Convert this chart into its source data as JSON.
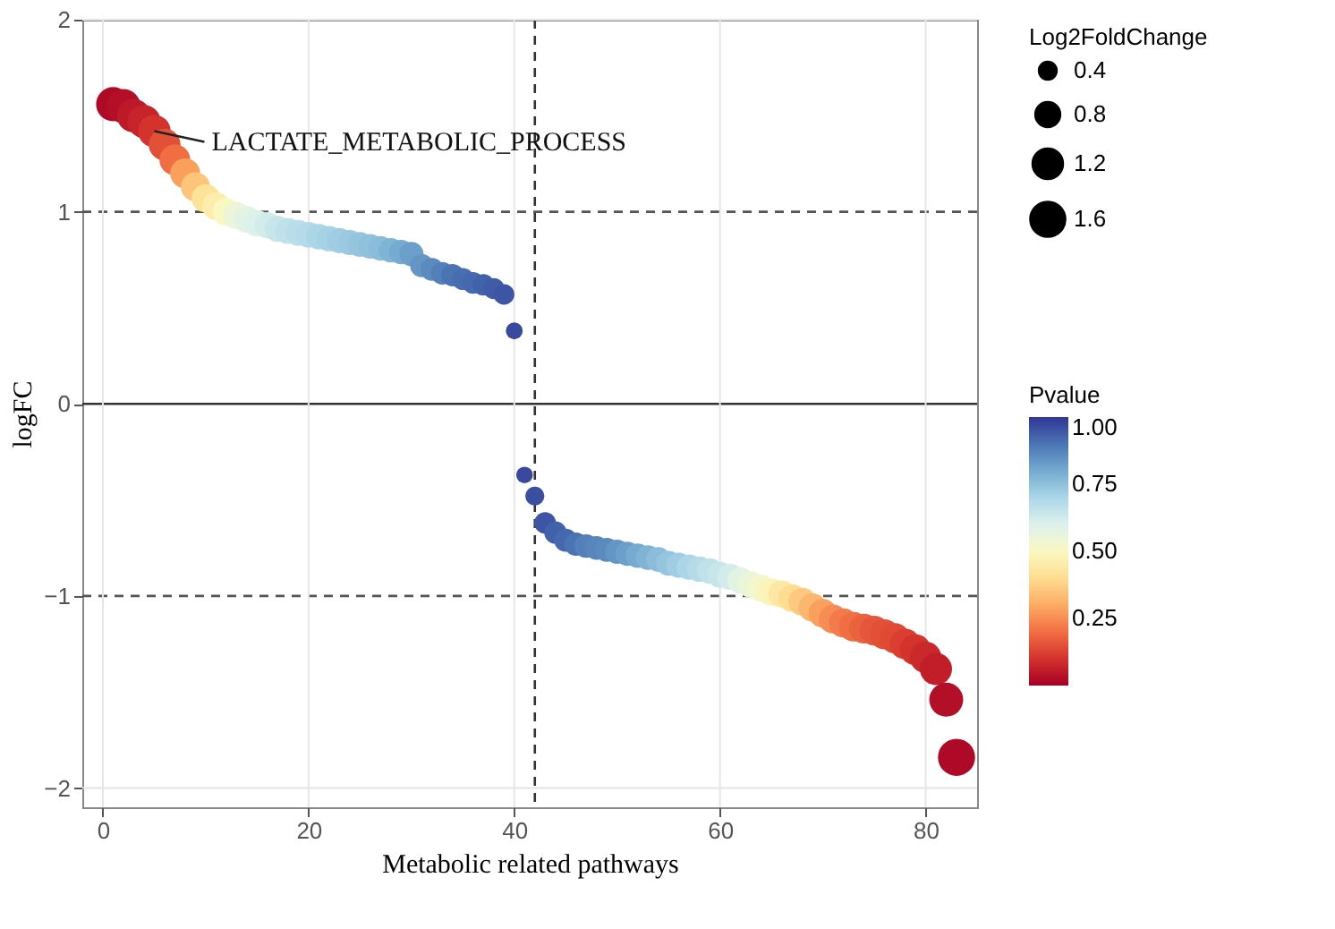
{
  "chart_data": {
    "type": "bubble",
    "xlabel": "Metabolic related pathways",
    "ylabel": "logFC",
    "legend_title": "Log2FoldChange",
    "clabel": "Pvalue",
    "x": [
      1,
      2,
      3,
      4,
      5,
      6,
      7,
      8,
      9,
      10,
      11,
      12,
      13,
      14,
      15,
      16,
      17,
      18,
      19,
      20,
      21,
      22,
      23,
      24,
      25,
      26,
      27,
      28,
      29,
      30,
      31,
      32,
      33,
      34,
      35,
      36,
      37,
      38,
      39,
      40,
      41,
      42,
      43,
      44,
      45,
      46,
      47,
      48,
      49,
      50,
      51,
      52,
      53,
      54,
      55,
      56,
      57,
      58,
      59,
      60,
      61,
      62,
      63,
      64,
      65,
      66,
      67,
      68,
      69,
      70,
      71,
      72,
      73,
      74,
      75,
      76,
      77,
      78,
      79,
      80,
      81,
      82,
      83
    ],
    "values": [
      1.56,
      1.55,
      1.5,
      1.47,
      1.42,
      1.35,
      1.27,
      1.2,
      1.13,
      1.07,
      1.03,
      1.0,
      0.98,
      0.96,
      0.94,
      0.93,
      0.91,
      0.9,
      0.89,
      0.88,
      0.87,
      0.86,
      0.85,
      0.84,
      0.83,
      0.82,
      0.81,
      0.8,
      0.79,
      0.78,
      0.72,
      0.7,
      0.68,
      0.67,
      0.65,
      0.63,
      0.62,
      0.6,
      0.57,
      0.38,
      -0.37,
      -0.48,
      -0.62,
      -0.67,
      -0.71,
      -0.73,
      -0.74,
      -0.75,
      -0.76,
      -0.77,
      -0.78,
      -0.79,
      -0.8,
      -0.81,
      -0.83,
      -0.84,
      -0.85,
      -0.86,
      -0.87,
      -0.89,
      -0.9,
      -0.92,
      -0.94,
      -0.96,
      -0.98,
      -0.99,
      -1.01,
      -1.03,
      -1.06,
      -1.09,
      -1.12,
      -1.14,
      -1.16,
      -1.17,
      -1.18,
      -1.2,
      -1.22,
      -1.25,
      -1.28,
      -1.32,
      -1.38,
      -1.54,
      -1.84
    ],
    "sizes": [
      1.56,
      1.55,
      1.5,
      1.47,
      1.42,
      1.35,
      1.27,
      1.2,
      1.13,
      1.07,
      1.03,
      1.0,
      0.98,
      0.96,
      0.94,
      0.93,
      0.91,
      0.9,
      0.89,
      0.88,
      0.87,
      0.86,
      0.85,
      0.84,
      0.83,
      0.82,
      0.81,
      0.8,
      0.79,
      0.78,
      0.72,
      0.7,
      0.68,
      0.67,
      0.65,
      0.63,
      0.62,
      0.6,
      0.57,
      0.38,
      0.37,
      0.48,
      0.62,
      0.67,
      0.71,
      0.73,
      0.74,
      0.75,
      0.76,
      0.77,
      0.78,
      0.79,
      0.8,
      0.81,
      0.83,
      0.84,
      0.85,
      0.86,
      0.87,
      0.89,
      0.9,
      0.92,
      0.94,
      0.96,
      0.98,
      0.99,
      1.01,
      1.03,
      1.06,
      1.09,
      1.12,
      1.14,
      1.16,
      1.17,
      1.18,
      1.2,
      1.22,
      1.25,
      1.28,
      1.32,
      1.38,
      1.54,
      1.84
    ],
    "size_legend": [
      0.4,
      0.8,
      1.2,
      1.6
    ],
    "cvalues": [
      0.02,
      0.03,
      0.05,
      0.07,
      0.1,
      0.15,
      0.2,
      0.28,
      0.35,
      0.42,
      0.46,
      0.5,
      0.55,
      0.58,
      0.6,
      0.62,
      0.64,
      0.66,
      0.67,
      0.68,
      0.7,
      0.71,
      0.72,
      0.73,
      0.74,
      0.75,
      0.76,
      0.78,
      0.8,
      0.82,
      0.84,
      0.86,
      0.88,
      0.9,
      0.91,
      0.92,
      0.93,
      0.94,
      0.95,
      0.97,
      0.97,
      0.96,
      0.95,
      0.93,
      0.92,
      0.9,
      0.88,
      0.87,
      0.86,
      0.84,
      0.82,
      0.8,
      0.78,
      0.76,
      0.74,
      0.72,
      0.7,
      0.68,
      0.66,
      0.64,
      0.62,
      0.58,
      0.55,
      0.52,
      0.48,
      0.44,
      0.4,
      0.36,
      0.32,
      0.28,
      0.25,
      0.22,
      0.2,
      0.18,
      0.16,
      0.15,
      0.14,
      0.12,
      0.1,
      0.08,
      0.06,
      0.03,
      0.02
    ],
    "clim": [
      0,
      1
    ],
    "cticks": [
      {
        "value": 0.25,
        "label": "0.25"
      },
      {
        "value": 0.5,
        "label": "0.50"
      },
      {
        "value": 0.75,
        "label": "0.75"
      },
      {
        "value": 1,
        "label": "1.00"
      }
    ],
    "xlim": [
      -2,
      85
    ],
    "xticks": [
      0,
      20,
      40,
      60,
      80
    ],
    "ylim": [
      -2.1,
      2
    ],
    "yticks": [
      -2,
      -1,
      0,
      1,
      2
    ],
    "ref_lines": [
      {
        "axis": "y",
        "value": 0,
        "color": "#333333",
        "line_style": "solid"
      },
      {
        "axis": "y",
        "value": 1,
        "color": "#555555",
        "line_style": "dashed"
      },
      {
        "axis": "y",
        "value": -1,
        "color": "#555555",
        "line_style": "dashed"
      },
      {
        "axis": "x",
        "value": 42,
        "color": "#333333",
        "line_style": "dashed"
      }
    ],
    "annotations": [
      {
        "text": "LACTATE_METABOLIC_PROCESS",
        "x": 5,
        "y": 1.42
      }
    ],
    "grid": true
  }
}
